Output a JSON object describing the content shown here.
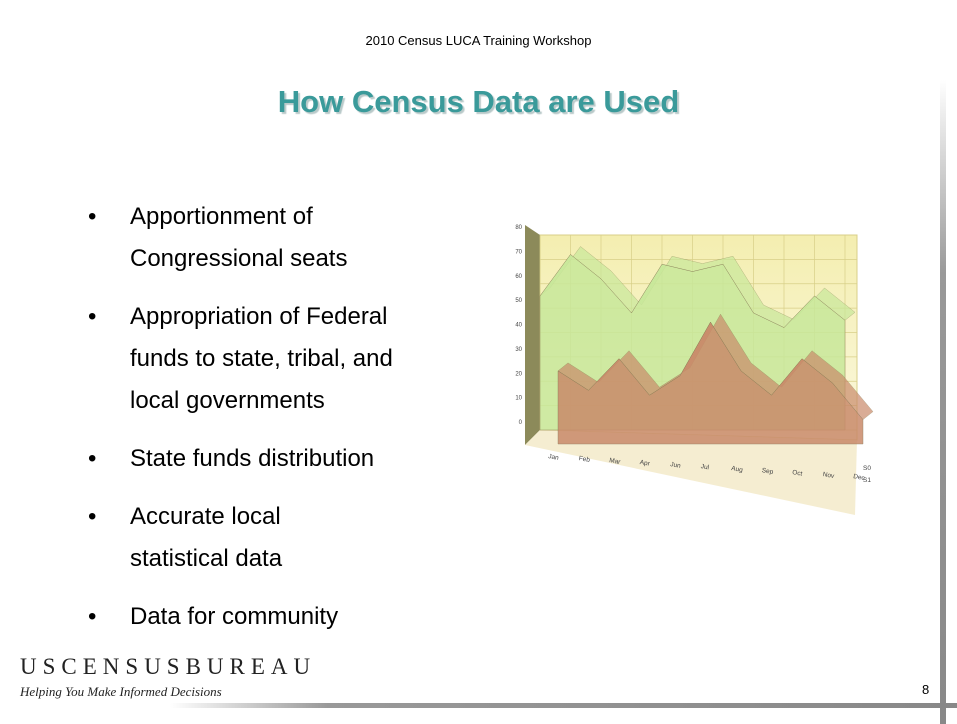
{
  "header": "2010 Census LUCA Training Workshop",
  "title": "How Census Data are Used",
  "bullets": [
    [
      "Apportionment of",
      "Congressional seats"
    ],
    [
      "Appropriation of Federal",
      "funds to state, tribal, and",
      "local governments"
    ],
    [
      "State funds distribution"
    ],
    [
      "Accurate local",
      "statistical data"
    ],
    [
      "Data for community"
    ]
  ],
  "illustration": {
    "type": "area",
    "categories": [
      "Jan",
      "Feb",
      "Mar",
      "Apr",
      "Jun",
      "Jul",
      "Aug",
      "Sep",
      "Oct",
      "Nov",
      "Dec"
    ],
    "series": [
      {
        "name": "S0",
        "color": "#c98a6a",
        "values": [
          30,
          22,
          35,
          20,
          28,
          50,
          30,
          20,
          35,
          25,
          10
        ]
      },
      {
        "name": "S1",
        "color": "#c8e89a",
        "values": [
          55,
          72,
          62,
          48,
          68,
          65,
          68,
          48,
          42,
          55,
          45
        ]
      }
    ],
    "ylim": [
      0,
      80
    ],
    "yticks": [
      0,
      10,
      20,
      30,
      40,
      50,
      60,
      70,
      80
    ],
    "grid": true
  },
  "footer": {
    "agency": "USCENSUSBUREAU",
    "tagline": "Helping You Make Informed Decisions"
  },
  "page_number": "8"
}
